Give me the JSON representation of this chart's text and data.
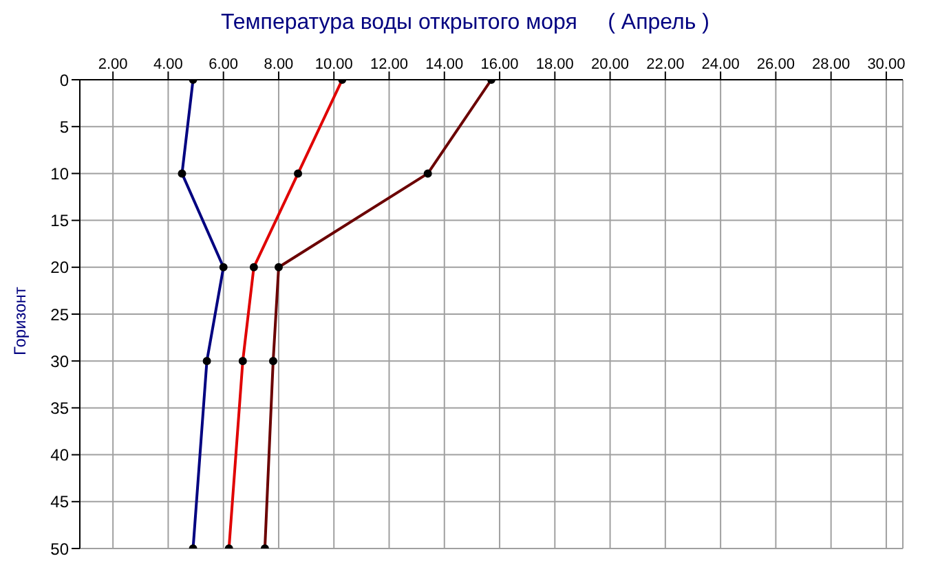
{
  "chart_data": {
    "type": "line",
    "title": "Температура воды открытого моря     ( Апрель )",
    "ylabel": "Горизонт",
    "series": [
      {
        "color": "#000080",
        "x": [
          4.9,
          4.5,
          6.0,
          5.4,
          4.9
        ],
        "values": [
          0,
          10,
          20,
          30,
          50
        ]
      },
      {
        "color": "#e00000",
        "x": [
          10.3,
          8.7,
          7.1,
          6.7,
          6.2
        ],
        "values": [
          0,
          10,
          20,
          30,
          50
        ]
      },
      {
        "color": "#6b0000",
        "x": [
          15.7,
          13.4,
          8.0,
          7.8,
          7.5
        ],
        "values": [
          0,
          10,
          20,
          30,
          50
        ]
      }
    ],
    "xlim": [
      0.8,
      30.6
    ],
    "xticks": [
      {
        "value": 2,
        "label": "2.00"
      },
      {
        "value": 4,
        "label": "4.00"
      },
      {
        "value": 6,
        "label": "6.00"
      },
      {
        "value": 8,
        "label": "8.00"
      },
      {
        "value": 10,
        "label": "10.00"
      },
      {
        "value": 12,
        "label": "12.00"
      },
      {
        "value": 14,
        "label": "14.00"
      },
      {
        "value": 16,
        "label": "16.00"
      },
      {
        "value": 18,
        "label": "18.00"
      },
      {
        "value": 20,
        "label": "20.00"
      },
      {
        "value": 22,
        "label": "22.00"
      },
      {
        "value": 24,
        "label": "24.00"
      },
      {
        "value": 26,
        "label": "26.00"
      },
      {
        "value": 28,
        "label": "28.00"
      },
      {
        "value": 30,
        "label": "30.00"
      }
    ],
    "ylim": [
      50,
      0
    ],
    "yticks": [
      0,
      5,
      10,
      15,
      20,
      25,
      30,
      35,
      40,
      45,
      50
    ],
    "grid": true,
    "marker": "circle",
    "line_style": "solid",
    "legend": false
  }
}
